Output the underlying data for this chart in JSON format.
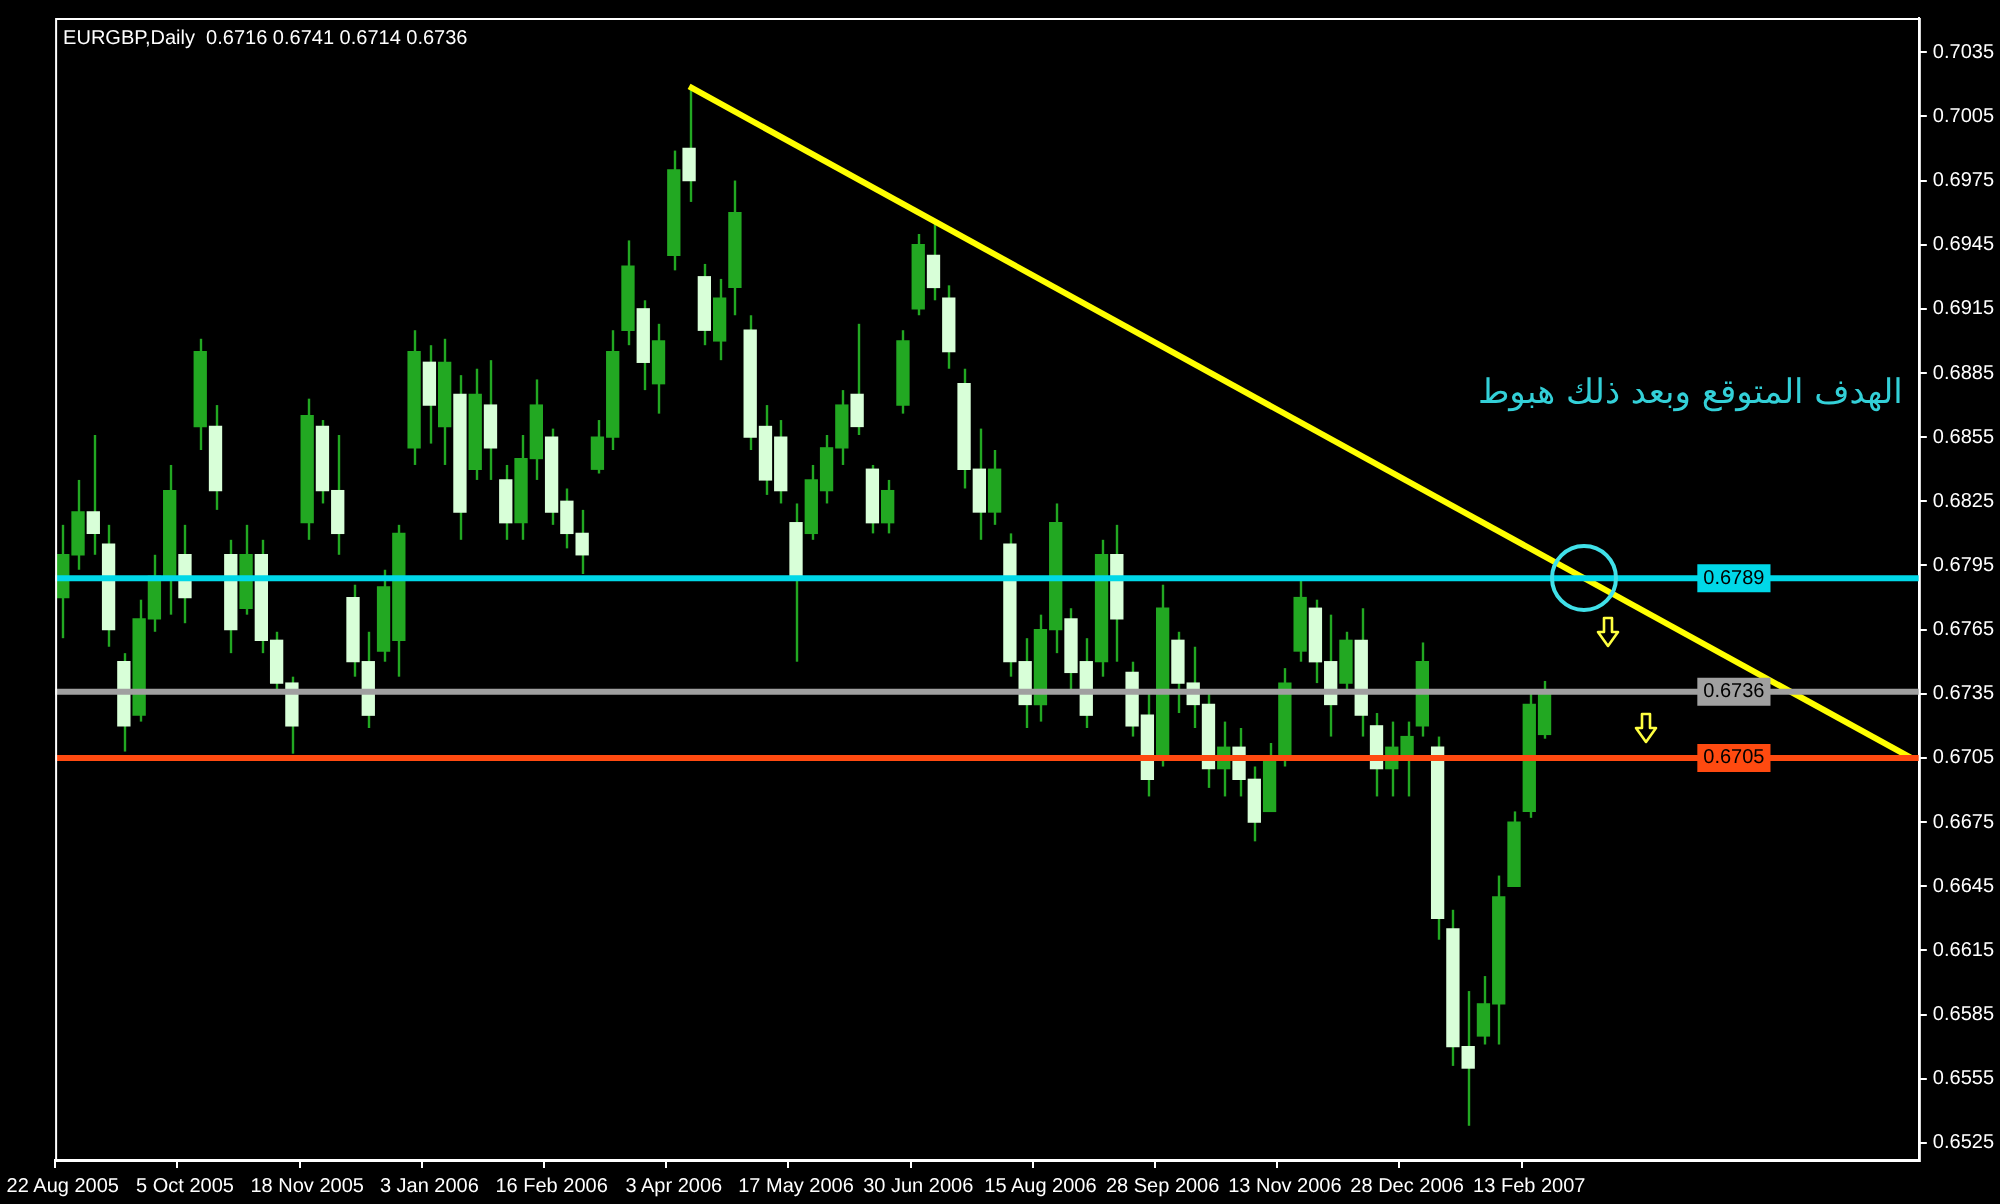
{
  "chart_data": {
    "type": "candlestick",
    "title": "EURGBP,Daily  0.6716 0.6741 0.6714 0.6736",
    "color": "#22a822",
    "categories": [
      "22 Aug 2005",
      null,
      null,
      null,
      null,
      null,
      null,
      null,
      "5 Oct 2005",
      null,
      null,
      null,
      null,
      null,
      null,
      null,
      "18 Nov 2005",
      null,
      null,
      null,
      null,
      null,
      null,
      null,
      "3 Jan 2006",
      null,
      null,
      null,
      null,
      null,
      null,
      null,
      "16 Feb 2006",
      null,
      null,
      null,
      null,
      null,
      null,
      null,
      "3 Apr 2006",
      null,
      null,
      null,
      null,
      null,
      null,
      null,
      "17 May 2006",
      null,
      null,
      null,
      null,
      null,
      null,
      null,
      "30 Jun 2006",
      null,
      null,
      null,
      null,
      null,
      null,
      null,
      "15 Aug 2006",
      null,
      null,
      null,
      null,
      null,
      null,
      null,
      "28 Sep 2006",
      null,
      null,
      null,
      null,
      null,
      null,
      null,
      "13 Nov 2006",
      null,
      null,
      null,
      null,
      null,
      null,
      null,
      "28 Dec 2006",
      null,
      null,
      null,
      null,
      null,
      null,
      null,
      "13 Feb 2007",
      null,
      null,
      null,
      null,
      null,
      null,
      null,
      null,
      null,
      null,
      null,
      null,
      null,
      null,
      null,
      null,
      null,
      null,
      null,
      null,
      null,
      null,
      null,
      null,
      null
    ],
    "ohlc": [
      [
        0.678,
        0.6814,
        0.6761,
        0.68
      ],
      [
        0.68,
        0.6835,
        0.6793,
        0.682
      ],
      [
        0.682,
        0.6856,
        0.68,
        0.681
      ],
      [
        0.6805,
        0.6814,
        0.6757,
        0.6765
      ],
      [
        0.675,
        0.6754,
        0.6708,
        0.672
      ],
      [
        0.6725,
        0.6779,
        0.6722,
        0.677
      ],
      [
        0.677,
        0.68,
        0.6764,
        0.679
      ],
      [
        0.679,
        0.6842,
        0.6772,
        0.683
      ],
      [
        0.68,
        0.6814,
        0.6768,
        0.678
      ],
      [
        0.686,
        0.6901,
        0.6849,
        0.6895
      ],
      [
        0.686,
        0.687,
        0.6821,
        0.683
      ],
      [
        0.68,
        0.6807,
        0.6754,
        0.6765
      ],
      [
        0.6775,
        0.6814,
        0.6772,
        0.68
      ],
      [
        0.68,
        0.6807,
        0.6754,
        0.676
      ],
      [
        0.676,
        0.6764,
        0.6736,
        0.674
      ],
      [
        0.674,
        0.6743,
        0.6707,
        0.672
      ],
      [
        0.6815,
        0.6873,
        0.6807,
        0.6865
      ],
      [
        0.686,
        0.6863,
        0.6824,
        0.683
      ],
      [
        0.683,
        0.6856,
        0.68,
        0.681
      ],
      [
        0.678,
        0.6786,
        0.6743,
        0.675
      ],
      [
        0.675,
        0.6764,
        0.6719,
        0.6725
      ],
      [
        0.6755,
        0.6793,
        0.675,
        0.6785
      ],
      [
        0.676,
        0.6814,
        0.6743,
        0.681
      ],
      [
        0.685,
        0.6905,
        0.6842,
        0.6895
      ],
      [
        0.689,
        0.6898,
        0.6852,
        0.687
      ],
      [
        0.686,
        0.6901,
        0.6842,
        0.689
      ],
      [
        0.6875,
        0.6884,
        0.6807,
        0.682
      ],
      [
        0.684,
        0.6887,
        0.6835,
        0.6875
      ],
      [
        0.687,
        0.6891,
        0.6835,
        0.685
      ],
      [
        0.6835,
        0.6842,
        0.6807,
        0.6815
      ],
      [
        0.6815,
        0.6856,
        0.6807,
        0.6845
      ],
      [
        0.6845,
        0.6882,
        0.6835,
        0.687
      ],
      [
        0.6855,
        0.6859,
        0.6814,
        0.682
      ],
      [
        0.6825,
        0.6831,
        0.6803,
        0.681
      ],
      [
        0.681,
        0.6821,
        0.6791,
        0.68
      ],
      [
        0.684,
        0.6863,
        0.6838,
        0.6855
      ],
      [
        0.6855,
        0.6905,
        0.6849,
        0.6895
      ],
      [
        0.6905,
        0.6947,
        0.6898,
        0.6935
      ],
      [
        0.6915,
        0.6919,
        0.6877,
        0.689
      ],
      [
        0.688,
        0.6908,
        0.6866,
        0.69
      ],
      [
        0.694,
        0.6989,
        0.6933,
        0.698
      ],
      [
        0.699,
        0.7019,
        0.6965,
        0.6975
      ],
      [
        0.693,
        0.6936,
        0.6898,
        0.6905
      ],
      [
        0.69,
        0.6929,
        0.6891,
        0.692
      ],
      [
        0.6925,
        0.6975,
        0.6912,
        0.696
      ],
      [
        0.6905,
        0.6912,
        0.6849,
        0.6855
      ],
      [
        0.686,
        0.687,
        0.6828,
        0.6835
      ],
      [
        0.6855,
        0.6863,
        0.6824,
        0.683
      ],
      [
        0.6815,
        0.6824,
        0.675,
        0.679
      ],
      [
        0.681,
        0.6842,
        0.6807,
        0.6835
      ],
      [
        0.683,
        0.6856,
        0.6824,
        0.685
      ],
      [
        0.685,
        0.6877,
        0.6842,
        0.687
      ],
      [
        0.6875,
        0.6908,
        0.6856,
        0.686
      ],
      [
        0.684,
        0.6842,
        0.681,
        0.6815
      ],
      [
        0.6815,
        0.6835,
        0.681,
        0.683
      ],
      [
        0.687,
        0.6905,
        0.6866,
        0.69
      ],
      [
        0.6915,
        0.695,
        0.6912,
        0.6945
      ],
      [
        0.694,
        0.6957,
        0.6919,
        0.6925
      ],
      [
        0.692,
        0.6926,
        0.6887,
        0.6895
      ],
      [
        0.688,
        0.6887,
        0.6831,
        0.684
      ],
      [
        0.684,
        0.6859,
        0.6807,
        0.682
      ],
      [
        0.682,
        0.6849,
        0.6814,
        0.684
      ],
      [
        0.6805,
        0.681,
        0.6743,
        0.675
      ],
      [
        0.675,
        0.6761,
        0.6719,
        0.673
      ],
      [
        0.673,
        0.6772,
        0.6722,
        0.6765
      ],
      [
        0.6765,
        0.6824,
        0.6754,
        0.6815
      ],
      [
        0.677,
        0.6775,
        0.6736,
        0.6745
      ],
      [
        0.675,
        0.6761,
        0.6719,
        0.6725
      ],
      [
        0.675,
        0.6807,
        0.6743,
        0.68
      ],
      [
        0.68,
        0.6814,
        0.675,
        0.677
      ],
      [
        0.6745,
        0.675,
        0.6715,
        0.672
      ],
      [
        0.6725,
        0.6736,
        0.6687,
        0.6695
      ],
      [
        0.6705,
        0.6786,
        0.6701,
        0.6775
      ],
      [
        0.676,
        0.6764,
        0.6726,
        0.674
      ],
      [
        0.674,
        0.6757,
        0.6719,
        0.673
      ],
      [
        0.673,
        0.6736,
        0.6691,
        0.67
      ],
      [
        0.67,
        0.6722,
        0.6687,
        0.671
      ],
      [
        0.671,
        0.6719,
        0.6687,
        0.6695
      ],
      [
        0.6695,
        0.6701,
        0.6666,
        0.6675
      ],
      [
        0.668,
        0.6712,
        0.668,
        0.6705
      ],
      [
        0.6705,
        0.6747,
        0.6701,
        0.674
      ],
      [
        0.6755,
        0.6789,
        0.675,
        0.678
      ],
      [
        0.6775,
        0.6779,
        0.674,
        0.675
      ],
      [
        0.675,
        0.6772,
        0.6715,
        0.673
      ],
      [
        0.674,
        0.6764,
        0.6736,
        0.676
      ],
      [
        0.676,
        0.6775,
        0.6715,
        0.6725
      ],
      [
        0.672,
        0.6726,
        0.6687,
        0.67
      ],
      [
        0.67,
        0.6722,
        0.6687,
        0.671
      ],
      [
        0.6705,
        0.6722,
        0.6687,
        0.6715
      ],
      [
        0.672,
        0.6759,
        0.6715,
        0.675
      ],
      [
        0.671,
        0.6715,
        0.662,
        0.663
      ],
      [
        0.6625,
        0.6634,
        0.6561,
        0.657
      ],
      [
        0.657,
        0.6596,
        0.6533,
        0.656
      ],
      [
        0.6575,
        0.6603,
        0.6571,
        0.659
      ],
      [
        0.659,
        0.665,
        0.6571,
        0.664
      ],
      [
        0.6645,
        0.668,
        0.6645,
        0.6675
      ],
      [
        0.668,
        0.6736,
        0.6677,
        0.673
      ],
      [
        0.6716,
        0.6741,
        0.6714,
        0.6736
      ],
      null,
      null,
      null,
      null,
      null,
      null,
      null,
      null,
      null,
      null,
      null,
      null,
      null,
      null,
      null,
      null,
      null,
      null,
      null,
      null,
      null,
      null,
      null,
      null
    ],
    "series": [
      {
        "type": "line",
        "color": "#ffff00",
        "values": [
          null,
          null,
          null,
          null,
          null,
          null,
          null,
          null,
          null,
          null,
          null,
          null,
          null,
          null,
          null,
          null,
          null,
          null,
          null,
          null,
          null,
          null,
          null,
          null,
          null,
          null,
          null,
          null,
          null,
          null,
          null,
          null,
          null,
          null,
          null,
          null,
          null,
          null,
          null,
          null,
          null,
          0.7019,
          null,
          null,
          null,
          null,
          null,
          null,
          null,
          null,
          null,
          null,
          null,
          null,
          null,
          null,
          null,
          null,
          null,
          null,
          null,
          null,
          null,
          null,
          null,
          null,
          null,
          null,
          null,
          null,
          null,
          null,
          null,
          null,
          null,
          null,
          null,
          null,
          null,
          null,
          null,
          null,
          null,
          null,
          null,
          null,
          null,
          null,
          null,
          null,
          null,
          null,
          null,
          null,
          null,
          null,
          null,
          null,
          null,
          null,
          null,
          null,
          null,
          null,
          null,
          null,
          null,
          null,
          null,
          null,
          null,
          null,
          null,
          null,
          null,
          null,
          null,
          null,
          null,
          null,
          null,
          0.6705
        ]
      }
    ],
    "colors": [
      "#22a822",
      "#22a822",
      "#d8ffd8",
      "#d8ffd8",
      "#d8ffd8",
      "#22a822",
      "#22a822",
      "#22a822",
      "#d8ffd8",
      "#22a822",
      "#d8ffd8",
      "#d8ffd8",
      "#22a822",
      "#d8ffd8",
      "#d8ffd8",
      "#d8ffd8",
      "#22a822",
      "#d8ffd8",
      "#d8ffd8",
      "#d8ffd8",
      "#d8ffd8",
      "#22a822",
      "#22a822",
      "#22a822",
      "#d8ffd8",
      "#22a822",
      "#d8ffd8",
      "#22a822",
      "#d8ffd8",
      "#d8ffd8",
      "#22a822",
      "#22a822",
      "#d8ffd8",
      "#d8ffd8",
      "#d8ffd8",
      "#22a822",
      "#22a822",
      "#22a822",
      "#d8ffd8",
      "#22a822",
      "#22a822",
      "#d8ffd8",
      "#d8ffd8",
      "#22a822",
      "#22a822",
      "#d8ffd8",
      "#d8ffd8",
      "#d8ffd8",
      "#d8ffd8",
      "#22a822",
      "#22a822",
      "#22a822",
      "#d8ffd8",
      "#d8ffd8",
      "#22a822",
      "#22a822",
      "#22a822",
      "#d8ffd8",
      "#d8ffd8",
      "#d8ffd8",
      "#d8ffd8",
      "#22a822",
      "#d8ffd8",
      "#d8ffd8",
      "#22a822",
      "#22a822",
      "#d8ffd8",
      "#d8ffd8",
      "#22a822",
      "#d8ffd8",
      "#d8ffd8",
      "#d8ffd8",
      "#22a822",
      "#d8ffd8",
      "#d8ffd8",
      "#d8ffd8",
      "#22a822",
      "#d8ffd8",
      "#d8ffd8",
      "#22a822",
      "#22a822",
      "#22a822",
      "#d8ffd8",
      "#d8ffd8",
      "#22a822",
      "#d8ffd8",
      "#d8ffd8",
      "#22a822",
      "#22a822",
      "#22a822",
      "#d8ffd8",
      "#d8ffd8",
      "#d8ffd8",
      "#22a822",
      "#22a822",
      "#22a822",
      "#22a822",
      "#22a822",
      null,
      null,
      null,
      null,
      null,
      null,
      null,
      null,
      null,
      null,
      null,
      null,
      null,
      null,
      null,
      null,
      null,
      null,
      null,
      null,
      null,
      null,
      null,
      null
    ],
    "ylim": [
      0.6517,
      0.7051
    ],
    "yticks": [
      0.7035,
      0.7005,
      0.6975,
      0.6945,
      0.6915,
      0.6885,
      0.6855,
      0.6825,
      0.6795,
      0.6765,
      0.6735,
      0.6705,
      0.6675,
      0.6645,
      0.6615,
      0.6585,
      0.6555,
      0.6525
    ],
    "ref_lines": [
      {
        "axis": "y",
        "value": 0.6789,
        "label": "0.6789",
        "color": "#00d8e8"
      },
      {
        "axis": "y",
        "value": 0.6736,
        "label": "0.6736",
        "color": "#a0a0a0"
      },
      {
        "axis": "y",
        "value": 0.6705,
        "label": "0.6705",
        "color": "#ff4a10"
      }
    ],
    "annotations": [
      "الهدف المتوقع وبعد ذلك هبوط"
    ]
  }
}
